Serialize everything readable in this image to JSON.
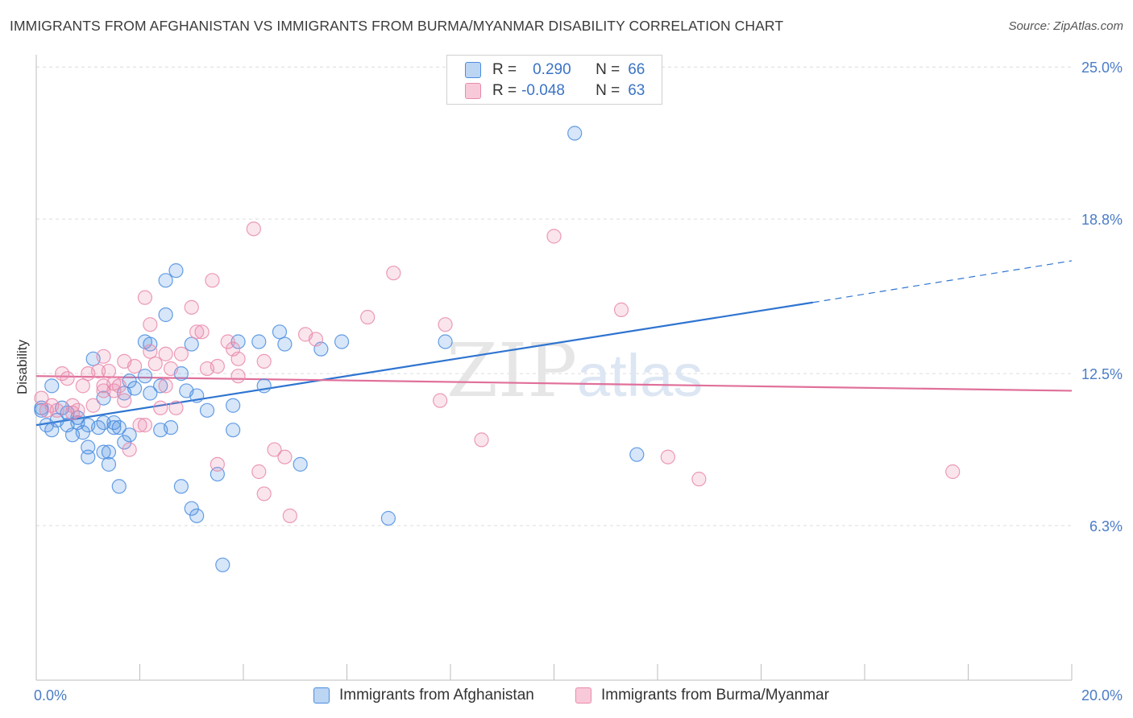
{
  "title": "IMMIGRANTS FROM AFGHANISTAN VS IMMIGRANTS FROM BURMA/MYANMAR DISABILITY CORRELATION CHART",
  "source": "Source: ZipAtlas.com",
  "watermark": {
    "zip": "ZIP",
    "atlas": "atlas"
  },
  "legend": {
    "r_label": "R =",
    "n_label": "N =",
    "series1": {
      "r": "0.290",
      "n": "66"
    },
    "series2": {
      "r": "-0.048",
      "n": "63"
    }
  },
  "chart_data": {
    "type": "scatter",
    "title": "IMMIGRANTS FROM AFGHANISTAN VS IMMIGRANTS FROM BURMA/MYANMAR DISABILITY CORRELATION CHART",
    "xlabel": "",
    "ylabel": "Disability",
    "xlim": [
      0,
      20
    ],
    "ylim": [
      0,
      25.5
    ],
    "x_tick_labels": [
      "0.0%",
      "20.0%"
    ],
    "y_ticks": [
      6.3,
      12.5,
      18.8,
      25.0
    ],
    "y_tick_labels": [
      "6.3%",
      "12.5%",
      "18.8%",
      "25.0%"
    ],
    "colors": {
      "series1": "#4a8de0",
      "series2": "#e98aab",
      "line1": "#2f74d0",
      "line2": "#e0709a"
    },
    "series": [
      {
        "name": "Immigrants from Afghanistan",
        "color": "#4a8de0",
        "trend": {
          "x0": 0,
          "y0": 10.4,
          "x1": 15.0,
          "y1": 15.4,
          "dashed_to_x": 20.0,
          "dashed_to_y": 17.1
        },
        "points": [
          [
            0.1,
            11.0
          ],
          [
            0.2,
            10.4
          ],
          [
            0.3,
            12.0
          ],
          [
            0.3,
            10.2
          ],
          [
            0.4,
            10.6
          ],
          [
            0.5,
            11.1
          ],
          [
            0.6,
            10.4
          ],
          [
            0.7,
            10.0
          ],
          [
            0.8,
            10.5
          ],
          [
            0.8,
            10.7
          ],
          [
            0.9,
            10.1
          ],
          [
            1.0,
            9.5
          ],
          [
            1.0,
            9.1
          ],
          [
            1.0,
            10.4
          ],
          [
            1.1,
            13.1
          ],
          [
            1.2,
            10.3
          ],
          [
            1.3,
            10.5
          ],
          [
            1.3,
            9.3
          ],
          [
            1.3,
            11.5
          ],
          [
            1.4,
            9.3
          ],
          [
            1.4,
            8.8
          ],
          [
            1.5,
            10.3
          ],
          [
            1.5,
            10.5
          ],
          [
            1.6,
            10.3
          ],
          [
            1.6,
            7.9
          ],
          [
            1.7,
            9.7
          ],
          [
            1.7,
            11.7
          ],
          [
            1.8,
            12.2
          ],
          [
            1.8,
            10.0
          ],
          [
            2.1,
            12.4
          ],
          [
            2.1,
            13.8
          ],
          [
            2.2,
            13.7
          ],
          [
            2.2,
            11.7
          ],
          [
            2.4,
            10.2
          ],
          [
            2.4,
            12.0
          ],
          [
            2.5,
            16.3
          ],
          [
            2.5,
            14.9
          ],
          [
            2.6,
            10.3
          ],
          [
            2.7,
            16.7
          ],
          [
            2.8,
            12.5
          ],
          [
            2.8,
            7.9
          ],
          [
            3.0,
            13.7
          ],
          [
            3.0,
            7.0
          ],
          [
            3.1,
            6.7
          ],
          [
            3.1,
            11.6
          ],
          [
            3.3,
            11.0
          ],
          [
            3.5,
            8.4
          ],
          [
            3.6,
            4.7
          ],
          [
            3.8,
            11.2
          ],
          [
            3.8,
            10.2
          ],
          [
            3.9,
            13.8
          ],
          [
            4.3,
            13.8
          ],
          [
            4.4,
            12.0
          ],
          [
            4.7,
            14.2
          ],
          [
            4.8,
            13.7
          ],
          [
            5.1,
            8.8
          ],
          [
            5.5,
            13.5
          ],
          [
            5.9,
            13.8
          ],
          [
            6.8,
            6.6
          ],
          [
            7.9,
            13.8
          ],
          [
            10.4,
            22.3
          ],
          [
            11.6,
            9.2
          ],
          [
            0.1,
            11.1
          ],
          [
            0.6,
            10.9
          ],
          [
            1.9,
            11.9
          ],
          [
            2.9,
            11.8
          ]
        ]
      },
      {
        "name": "Immigrants from Burma/Myanmar",
        "color": "#e98aab",
        "trend": {
          "x0": 0,
          "y0": 12.4,
          "x1": 20.0,
          "y1": 11.8
        },
        "points": [
          [
            0.1,
            11.5
          ],
          [
            0.2,
            11.0
          ],
          [
            0.3,
            11.2
          ],
          [
            0.4,
            11.0
          ],
          [
            0.5,
            12.5
          ],
          [
            0.6,
            12.3
          ],
          [
            0.7,
            11.2
          ],
          [
            0.7,
            10.9
          ],
          [
            0.8,
            11.0
          ],
          [
            0.9,
            12.0
          ],
          [
            1.0,
            12.5
          ],
          [
            1.1,
            11.2
          ],
          [
            1.2,
            12.6
          ],
          [
            1.3,
            12.0
          ],
          [
            1.3,
            11.8
          ],
          [
            1.3,
            13.2
          ],
          [
            1.4,
            12.6
          ],
          [
            1.5,
            12.1
          ],
          [
            1.5,
            11.8
          ],
          [
            1.6,
            12.0
          ],
          [
            1.7,
            11.4
          ],
          [
            1.7,
            13.0
          ],
          [
            1.8,
            9.4
          ],
          [
            1.9,
            12.8
          ],
          [
            2.0,
            10.4
          ],
          [
            2.1,
            10.4
          ],
          [
            2.1,
            15.6
          ],
          [
            2.2,
            13.4
          ],
          [
            2.2,
            14.5
          ],
          [
            2.3,
            12.9
          ],
          [
            2.4,
            11.1
          ],
          [
            2.5,
            13.3
          ],
          [
            2.5,
            12.0
          ],
          [
            2.6,
            12.7
          ],
          [
            2.7,
            11.1
          ],
          [
            2.8,
            13.3
          ],
          [
            3.0,
            15.2
          ],
          [
            3.1,
            14.2
          ],
          [
            3.2,
            14.2
          ],
          [
            3.3,
            12.7
          ],
          [
            3.4,
            16.3
          ],
          [
            3.5,
            12.8
          ],
          [
            3.5,
            8.8
          ],
          [
            3.7,
            13.8
          ],
          [
            3.8,
            13.5
          ],
          [
            3.9,
            12.4
          ],
          [
            3.9,
            13.1
          ],
          [
            4.2,
            18.4
          ],
          [
            4.3,
            8.5
          ],
          [
            4.4,
            7.6
          ],
          [
            4.4,
            13.0
          ],
          [
            4.6,
            9.4
          ],
          [
            4.8,
            9.1
          ],
          [
            4.9,
            6.7
          ],
          [
            5.2,
            14.1
          ],
          [
            5.4,
            13.9
          ],
          [
            6.4,
            14.8
          ],
          [
            6.9,
            16.6
          ],
          [
            7.8,
            11.4
          ],
          [
            7.9,
            14.5
          ],
          [
            8.6,
            9.8
          ],
          [
            10.0,
            18.1
          ],
          [
            11.3,
            15.1
          ]
        ]
      }
    ],
    "extra_points_series2": [
      [
        12.2,
        9.1
      ],
      [
        12.8,
        8.2
      ],
      [
        17.7,
        8.5
      ]
    ]
  },
  "bottom_legend": [
    "Immigrants from Afghanistan",
    "Immigrants from Burma/Myanmar"
  ]
}
